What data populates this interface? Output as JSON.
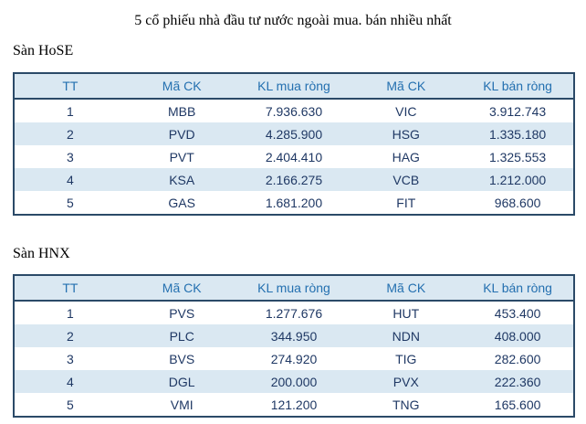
{
  "page": {
    "title": "5 cổ phiếu nhà đầu tư nước ngoài mua. bán nhiều nhất"
  },
  "colors": {
    "header_text": "#2470b0",
    "data_text": "#1f3864",
    "stripe_background": "#dae8f2",
    "table_border": "#2b4a68"
  },
  "tables": [
    {
      "section_label": "Sàn HoSE",
      "columns": [
        "TT",
        "Mã CK",
        "KL mua ròng",
        "Mã CK",
        "KL bán ròng"
      ],
      "rows": [
        [
          "1",
          "MBB",
          "7.936.630",
          "VIC",
          "3.912.743"
        ],
        [
          "2",
          "PVD",
          "4.285.900",
          "HSG",
          "1.335.180"
        ],
        [
          "3",
          "PVT",
          "2.404.410",
          "HAG",
          "1.325.553"
        ],
        [
          "4",
          "KSA",
          "2.166.275",
          "VCB",
          "1.212.000"
        ],
        [
          "5",
          "GAS",
          "1.681.200",
          "FIT",
          "968.600"
        ]
      ]
    },
    {
      "section_label": "Sàn HNX",
      "columns": [
        "TT",
        "Mã CK",
        "KL mua ròng",
        "Mã CK",
        "KL bán ròng"
      ],
      "rows": [
        [
          "1",
          "PVS",
          "1.277.676",
          "HUT",
          "453.400"
        ],
        [
          "2",
          "PLC",
          "344.950",
          "NDN",
          "408.000"
        ],
        [
          "3",
          "BVS",
          "274.920",
          "TIG",
          "282.600"
        ],
        [
          "4",
          "DGL",
          "200.000",
          "PVX",
          "222.360"
        ],
        [
          "5",
          "VMI",
          "121.200",
          "TNG",
          "165.600"
        ]
      ]
    }
  ]
}
